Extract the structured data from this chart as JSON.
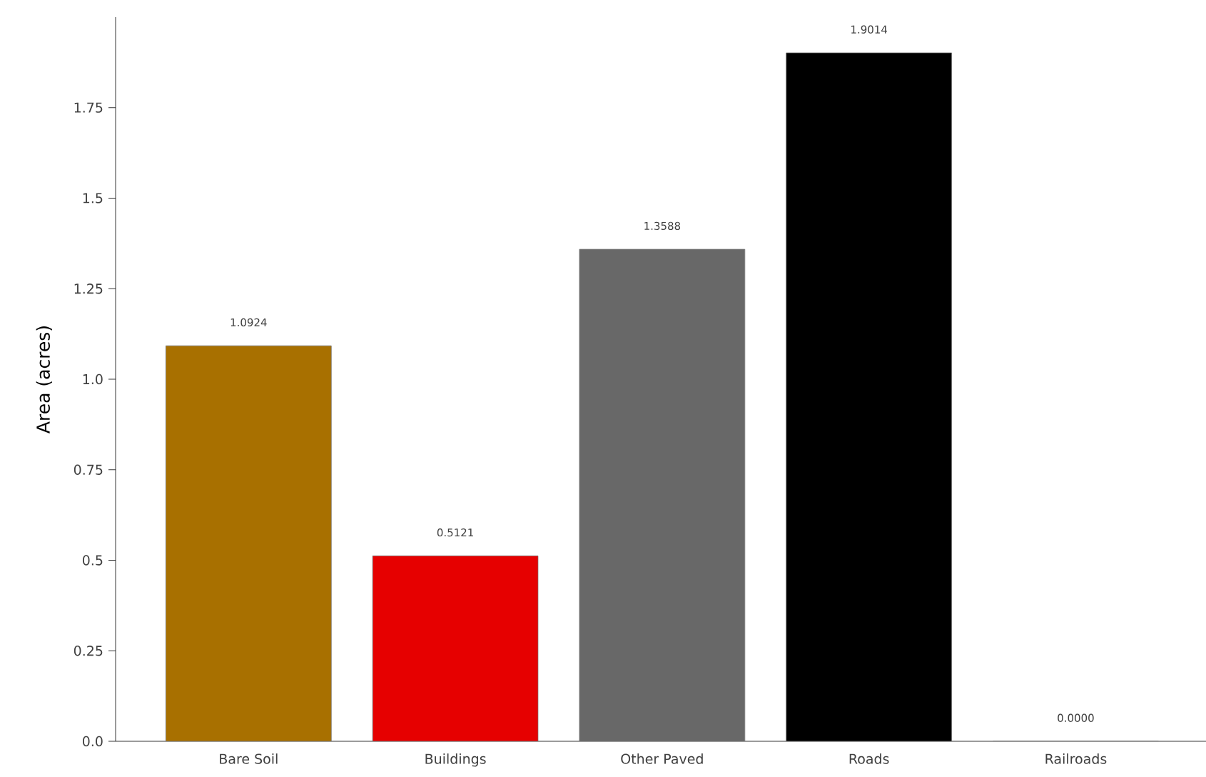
{
  "chart_data": {
    "type": "bar",
    "ylabel": "Area (acres)",
    "categories": [
      "Bare Soil",
      "Buildings",
      "Other Paved",
      "Roads",
      "Railroads"
    ],
    "values": [
      1.0924,
      0.5121,
      1.3588,
      1.9014,
      0.0
    ],
    "colors": [
      "#a87000",
      "#e60000",
      "#686868",
      "#000000",
      "#b2b2b2"
    ],
    "value_labels": [
      "1.0924",
      "0.5121",
      "1.3588",
      "1.9014",
      "0.0000"
    ],
    "ylim": [
      0,
      2
    ],
    "yticks": [
      {
        "value": 0,
        "label": "0.0"
      },
      0.25,
      0.5,
      0.75,
      {
        "value": 1,
        "label": "1.0"
      },
      1.25,
      1.5,
      1.75
    ],
    "tick_labels": true
  }
}
